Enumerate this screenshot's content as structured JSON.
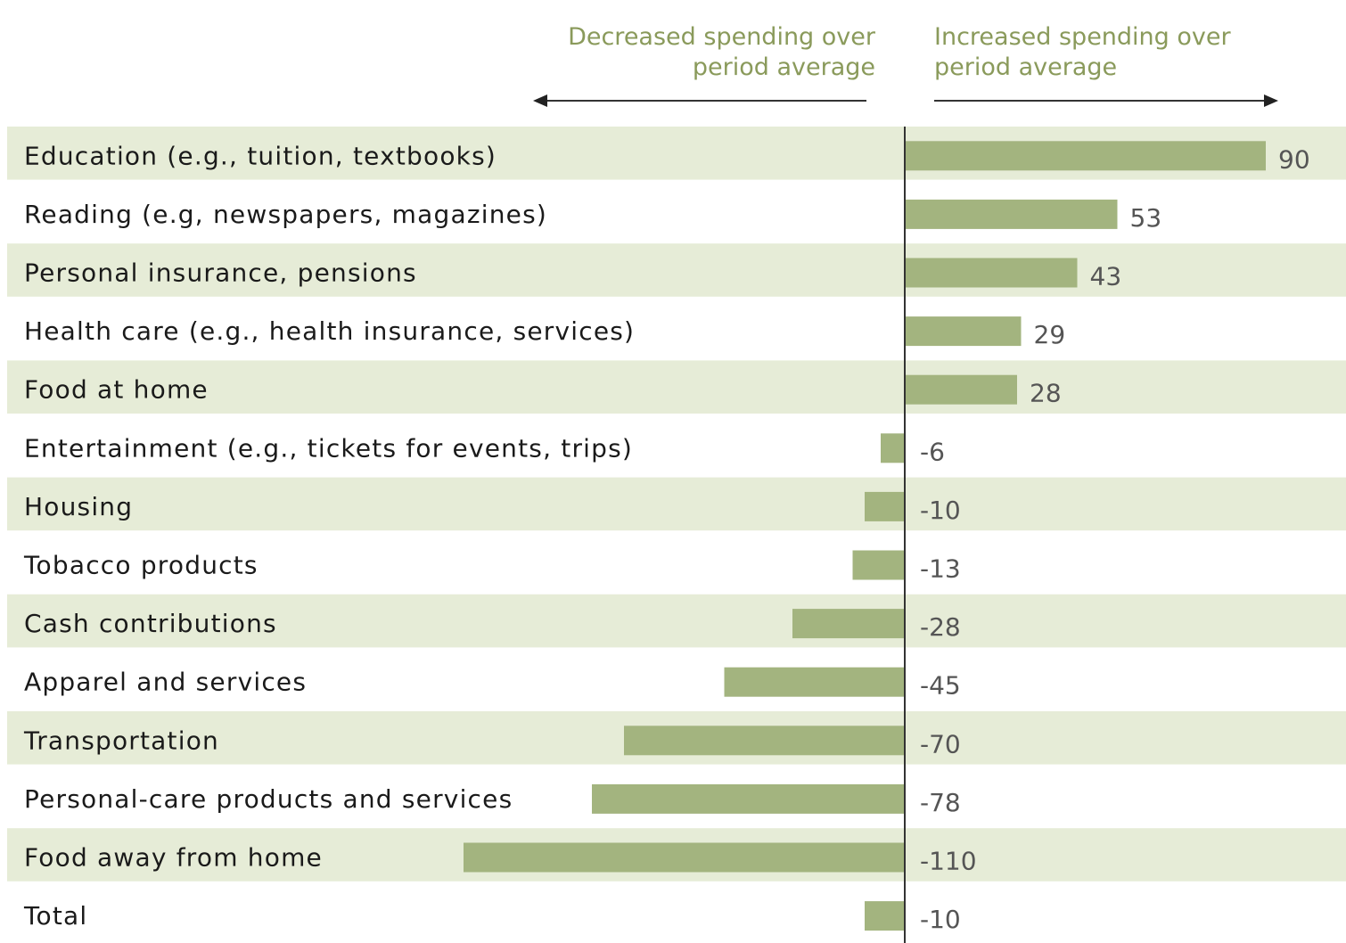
{
  "header": {
    "left_line1": "Decreased spending over",
    "left_line2": "period average",
    "right_line1": "Increased spending over",
    "right_line2": "period average"
  },
  "colors": {
    "bar": "#a3b47f",
    "band": "#e6ecd7",
    "axis": "#333333",
    "legend_text": "#8a9a5b"
  },
  "chart_data": {
    "type": "bar",
    "orientation": "horizontal",
    "categories": [
      "Education (e.g., tuition, textbooks)",
      "Reading (e.g, newspapers, magazines)",
      "Personal insurance, pensions",
      "Health care (e.g., health insurance, services)",
      "Food at home",
      "Entertainment (e.g., tickets for events, trips)",
      "Housing",
      "Tobacco products",
      "Cash contributions",
      "Apparel and services",
      "Transportation",
      "Personal-care products and services",
      "Food away from home",
      "Total"
    ],
    "values": [
      90,
      53,
      43,
      29,
      28,
      -6,
      -10,
      -13,
      -28,
      -45,
      -70,
      -78,
      -110,
      -10
    ],
    "value_labels": [
      "90",
      "53",
      "43",
      "29",
      "28",
      "-6",
      "-10",
      "-13",
      "-28",
      "-45",
      "-70",
      "-78",
      "-110",
      "-10"
    ],
    "title": "",
    "xlabel": "",
    "ylabel": "",
    "xlim": [
      -110,
      90
    ],
    "grid": false,
    "alternating_row_bands": true
  }
}
